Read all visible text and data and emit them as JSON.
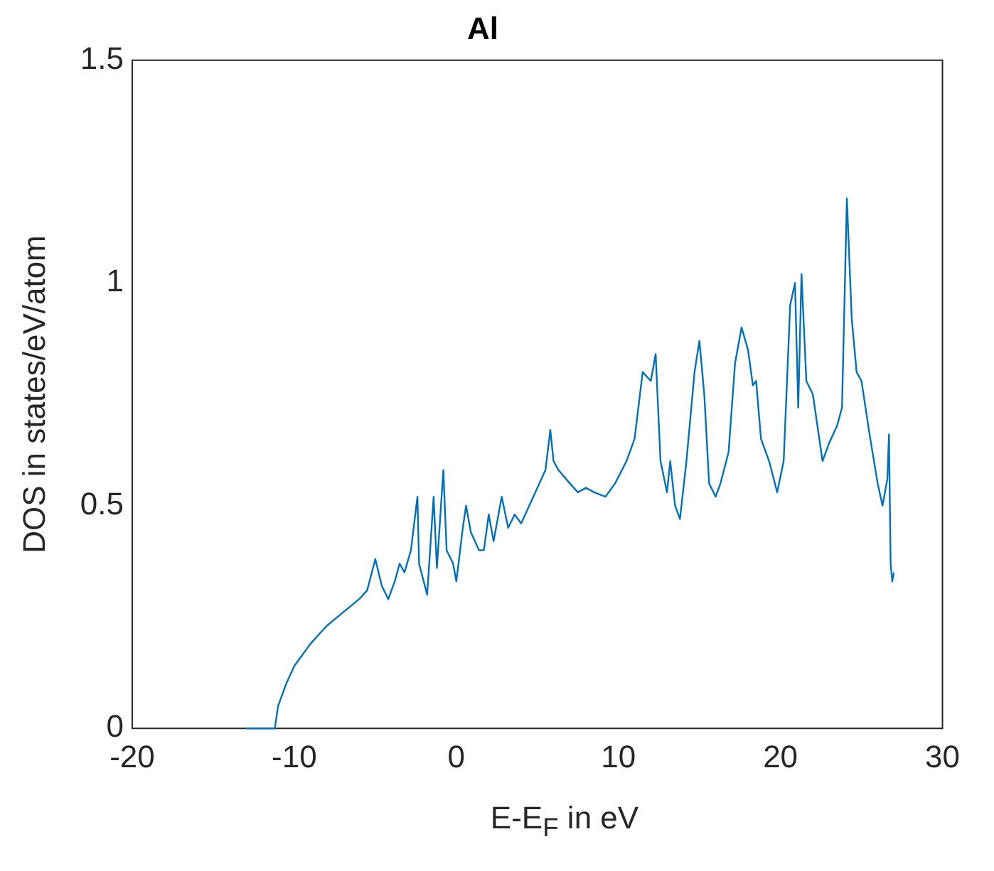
{
  "chart_data": {
    "type": "line",
    "title": "Al",
    "xlabel": "E-E$_{F}$ in eV",
    "ylabel": "DOS in states/eV/atom",
    "xlim": [
      -20,
      30
    ],
    "xticks": [
      -20,
      -10,
      0,
      10,
      20,
      30
    ],
    "ylim": [
      0,
      1.5
    ],
    "yticks": [
      0,
      0.5,
      1,
      1.5
    ],
    "grid": false,
    "legend": false,
    "marker": "none",
    "line_style": "solid",
    "series": [
      {
        "color": "#0072bd",
        "x": [
          -13,
          -11.2,
          -11,
          -10.5,
          -10,
          -9,
          -8,
          -7,
          -6,
          -5.5,
          -5,
          -4.6,
          -4.2,
          -3.8,
          -3.5,
          -3.2,
          -2.8,
          -2.4,
          -2.3,
          -1.8,
          -1.4,
          -1.2,
          -0.8,
          -0.6,
          -0.2,
          0,
          0.4,
          0.6,
          0.9,
          1.4,
          1.7,
          2,
          2.3,
          2.8,
          3.2,
          3.6,
          4,
          4.5,
          5,
          5.5,
          5.8,
          6,
          6.3,
          7,
          7.5,
          8,
          8.5,
          9.2,
          9.8,
          10.5,
          11,
          11.5,
          12,
          12.3,
          12.6,
          13,
          13.2,
          13.5,
          13.8,
          14.2,
          14.7,
          15,
          15.3,
          15.6,
          16,
          16.3,
          16.8,
          17.2,
          17.6,
          18,
          18.3,
          18.5,
          18.8,
          19.3,
          19.8,
          20.2,
          20.6,
          20.9,
          21.1,
          21.3,
          21.6,
          22,
          22.6,
          23,
          23.5,
          23.8,
          24.1,
          24.4,
          24.7,
          25,
          25.5,
          26,
          26.3,
          26.6,
          26.7,
          26.8,
          26.9,
          27
        ],
        "values": [
          0,
          0,
          0.05,
          0.1,
          0.14,
          0.19,
          0.23,
          0.26,
          0.29,
          0.31,
          0.38,
          0.32,
          0.29,
          0.33,
          0.37,
          0.35,
          0.4,
          0.52,
          0.37,
          0.3,
          0.52,
          0.36,
          0.58,
          0.4,
          0.37,
          0.33,
          0.45,
          0.5,
          0.44,
          0.4,
          0.4,
          0.48,
          0.42,
          0.52,
          0.45,
          0.48,
          0.46,
          0.5,
          0.54,
          0.58,
          0.67,
          0.6,
          0.58,
          0.55,
          0.53,
          0.54,
          0.53,
          0.52,
          0.55,
          0.6,
          0.65,
          0.8,
          0.78,
          0.84,
          0.6,
          0.53,
          0.6,
          0.5,
          0.47,
          0.6,
          0.8,
          0.87,
          0.75,
          0.55,
          0.52,
          0.55,
          0.62,
          0.82,
          0.9,
          0.85,
          0.77,
          0.78,
          0.65,
          0.6,
          0.53,
          0.6,
          0.95,
          1,
          0.72,
          1.02,
          0.78,
          0.75,
          0.6,
          0.64,
          0.68,
          0.72,
          1.19,
          0.92,
          0.8,
          0.78,
          0.66,
          0.55,
          0.5,
          0.56,
          0.66,
          0.37,
          0.33,
          0.35
        ]
      }
    ]
  }
}
